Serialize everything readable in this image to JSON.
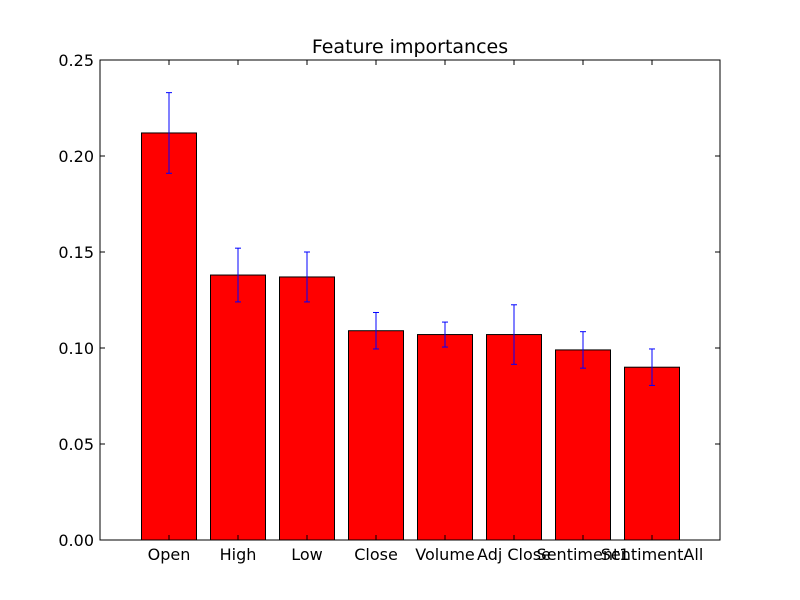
{
  "chart_data": {
    "type": "bar",
    "title": "Feature importances",
    "xlabel": "",
    "ylabel": "",
    "categories": [
      "Open",
      "High",
      "Low",
      "Close",
      "Volume",
      "Adj Close",
      "Sentiment1",
      "SentimentAll"
    ],
    "values": [
      0.212,
      0.138,
      0.137,
      0.109,
      0.107,
      0.107,
      0.099,
      0.09
    ],
    "errors": [
      0.021,
      0.014,
      0.013,
      0.0095,
      0.0065,
      0.0155,
      0.0095,
      0.0095
    ],
    "ylim": [
      0.0,
      0.25
    ],
    "yticks": [
      "0.00",
      "0.05",
      "0.10",
      "0.15",
      "0.20",
      "0.25"
    ],
    "bar_color": "#ff0000",
    "error_color": "#0000ff",
    "grid": false,
    "legend": "none"
  }
}
